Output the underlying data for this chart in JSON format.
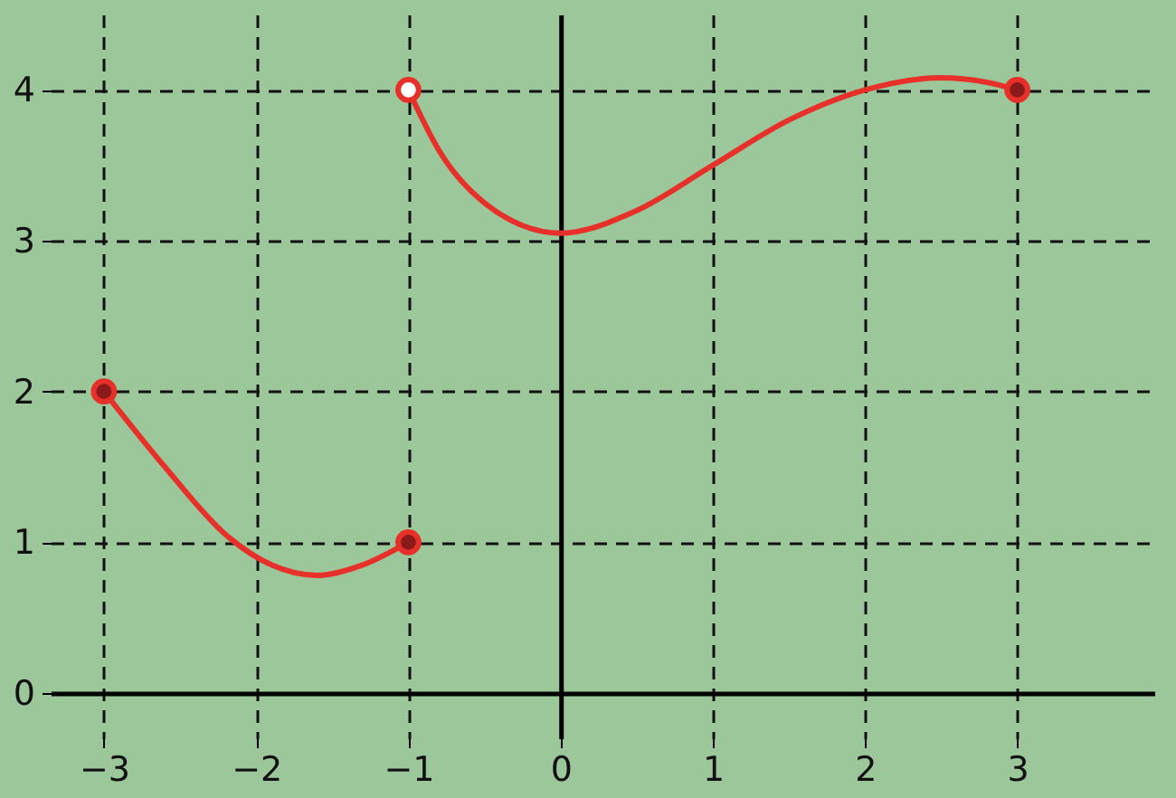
{
  "chart_data": {
    "type": "line",
    "xlim": [
      -3.35,
      3.9
    ],
    "ylim": [
      -0.3,
      4.5
    ],
    "xticks": [
      -3,
      -2,
      -1,
      0,
      1,
      2,
      3
    ],
    "yticks": [
      0,
      1,
      2,
      3,
      4
    ],
    "grid": true,
    "line_style": "solid",
    "series": [
      {
        "color": "#e8302a",
        "x": [
          -3,
          -2.6,
          -2.2,
          -1.9,
          -1.6,
          -1.3,
          -1
        ],
        "values": [
          2,
          1.5,
          1.05,
          0.85,
          0.78,
          0.85,
          1
        ]
      },
      {
        "color": "#e8302a",
        "x": [
          -1,
          -0.8,
          -0.5,
          0,
          0.5,
          1,
          1.5,
          2,
          2.5,
          2.8,
          3
        ],
        "values": [
          4,
          3.6,
          3.25,
          3.05,
          3.2,
          3.5,
          3.8,
          4,
          4.08,
          4.05,
          4
        ]
      },
      {
        "type": "scatter",
        "color": "#8b1a1a",
        "x": [
          -3,
          -1,
          3
        ],
        "values": [
          2,
          1,
          4
        ]
      },
      {
        "type": "scatter",
        "color": "#ffffff",
        "x": [
          -1
        ],
        "values": [
          4
        ]
      }
    ]
  }
}
